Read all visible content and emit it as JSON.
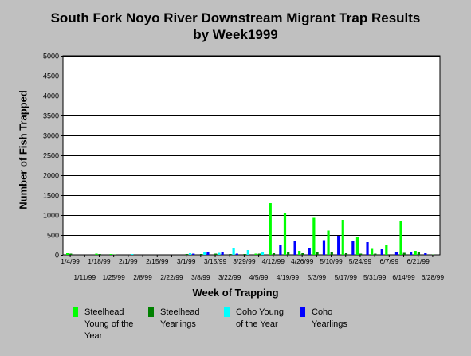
{
  "chart_data": {
    "type": "bar",
    "title": "South Fork Noyo River Downstream Migrant Trap Results",
    "subtitle": "by Week1999",
    "xlabel": "Week of Trapping",
    "ylabel": "Number of Fish Trapped",
    "ylim": [
      0,
      5000
    ],
    "yticks": [
      0,
      500,
      1000,
      1500,
      2000,
      2500,
      3000,
      3500,
      4000,
      4500,
      5000
    ],
    "grid": true,
    "legend_position": "bottom",
    "categories": [
      "1/4/99",
      "1/11/99",
      "1/18/99",
      "1/25/99",
      "2/1/99",
      "2/8/99",
      "2/15/99",
      "2/22/99",
      "3/1/99",
      "3/8/99",
      "3/15/99",
      "3/22/99",
      "3/29/99",
      "4/5/99",
      "4/12/99",
      "4/19/99",
      "4/26/99",
      "5/3/99",
      "5/10/99",
      "5/17/99",
      "5/24/99",
      "5/31/99",
      "6/7/99",
      "6/14/99",
      "6/21/99",
      "6/28/99"
    ],
    "series": [
      {
        "name": "Steelhead Young of the Year",
        "color": "#00ff00",
        "values": [
          40,
          0,
          30,
          20,
          0,
          0,
          0,
          0,
          0,
          0,
          0,
          0,
          0,
          30,
          1300,
          1050,
          100,
          930,
          610,
          880,
          450,
          150,
          260,
          850,
          100,
          0
        ]
      },
      {
        "name": "Steelhead Yearlings",
        "color": "#008000",
        "values": [
          30,
          0,
          20,
          10,
          0,
          0,
          0,
          0,
          20,
          20,
          30,
          20,
          20,
          30,
          40,
          60,
          40,
          60,
          80,
          40,
          30,
          30,
          0,
          50,
          60,
          10
        ]
      },
      {
        "name": "Coho Young of the Year",
        "color": "#00ffff",
        "values": [
          0,
          0,
          0,
          0,
          20,
          0,
          0,
          0,
          40,
          60,
          50,
          170,
          120,
          80,
          0,
          0,
          0,
          0,
          0,
          0,
          0,
          0,
          0,
          0,
          0,
          0
        ]
      },
      {
        "name": "Coho Yearlings",
        "color": "#0000ff",
        "values": [
          0,
          0,
          0,
          0,
          0,
          0,
          0,
          0,
          30,
          60,
          80,
          30,
          0,
          0,
          250,
          360,
          160,
          370,
          480,
          360,
          320,
          140,
          60,
          60,
          40,
          0
        ]
      }
    ]
  }
}
